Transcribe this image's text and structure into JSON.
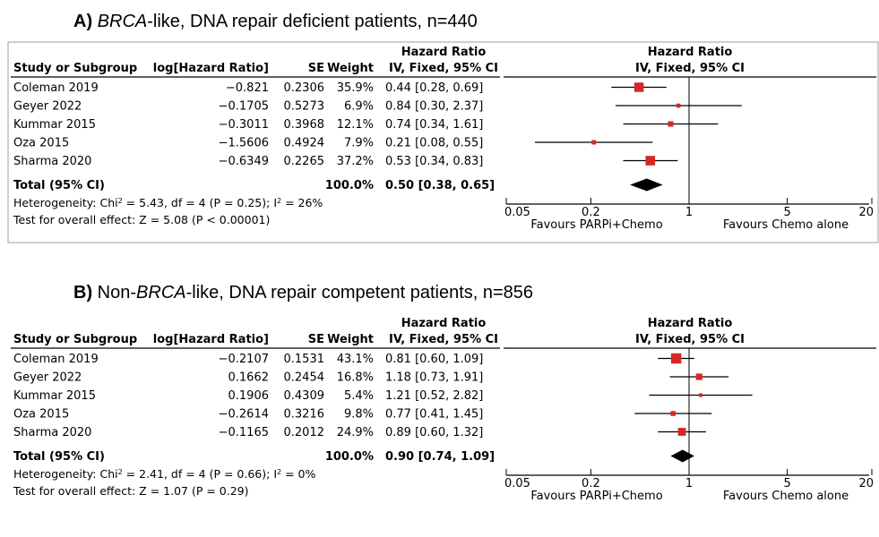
{
  "chart_data": [
    {
      "type": "forest",
      "title_prefix": "A)",
      "title_italic": "BRCA",
      "title_rest": "-like, DNA repair deficient patients,",
      "title_n": "n=440",
      "headers": {
        "study": "Study or Subgroup",
        "loghr": "log[Hazard Ratio]",
        "se": "SE",
        "weight": "Weight",
        "hr_line1": "Hazard Ratio",
        "hr_line2": "IV, Fixed, 95% CI",
        "plot_line1": "Hazard Ratio",
        "plot_line2": "IV, Fixed, 95% CI"
      },
      "studies": [
        {
          "name": "Coleman 2019",
          "loghr": "−0.821",
          "se": "0.2306",
          "weight": "35.9%",
          "ci_text": "0.44 [0.28, 0.69]",
          "hr": 0.44,
          "lo": 0.28,
          "hi": 0.69,
          "w": 35.9
        },
        {
          "name": "Geyer 2022",
          "loghr": "−0.1705",
          "se": "0.5273",
          "weight": "6.9%",
          "ci_text": "0.84 [0.30, 2.37]",
          "hr": 0.84,
          "lo": 0.3,
          "hi": 2.37,
          "w": 6.9
        },
        {
          "name": "Kummar 2015",
          "loghr": "−0.3011",
          "se": "0.3968",
          "weight": "12.1%",
          "ci_text": "0.74 [0.34, 1.61]",
          "hr": 0.74,
          "lo": 0.34,
          "hi": 1.61,
          "w": 12.1
        },
        {
          "name": "Oza 2015",
          "loghr": "−1.5606",
          "se": "0.4924",
          "weight": "7.9%",
          "ci_text": "0.21 [0.08, 0.55]",
          "hr": 0.21,
          "lo": 0.08,
          "hi": 0.55,
          "w": 7.9
        },
        {
          "name": "Sharma 2020",
          "loghr": "−0.6349",
          "se": "0.2265",
          "weight": "37.2%",
          "ci_text": "0.53 [0.34, 0.83]",
          "hr": 0.53,
          "lo": 0.34,
          "hi": 0.83,
          "w": 37.2
        }
      ],
      "total": {
        "label": "Total (95% CI)",
        "weight": "100.0%",
        "ci_text": "0.50 [0.38, 0.65]",
        "hr": 0.5,
        "lo": 0.38,
        "hi": 0.65
      },
      "heterogeneity": {
        "prefix": "Heterogeneity: Chi",
        "sup1": "2",
        "mid": " = 5.43, df = 4 (P = 0.25); I",
        "sup2": "2",
        "end": " = 26%"
      },
      "overall": "Test for overall effect: Z = 5.08 (P < 0.00001)",
      "axis": {
        "scale": "log",
        "ticks": [
          0.05,
          0.2,
          1,
          5,
          20
        ],
        "tick_labels": [
          "0.05",
          "0.2",
          "1",
          "5",
          "20"
        ],
        "range": [
          0.05,
          20
        ],
        "favours_left": "Favours PARPi+Chemo",
        "favours_right": "Favours Chemo alone"
      }
    },
    {
      "type": "forest",
      "title_prefix": "B)",
      "title_italic_before": "Non-",
      "title_italic": "BRCA",
      "title_rest": "-like, DNA repair competent patients,",
      "title_n": "n=856",
      "headers": {
        "study": "Study or Subgroup",
        "loghr": "log[Hazard Ratio]",
        "se": "SE",
        "weight": "Weight",
        "hr_line1": "Hazard Ratio",
        "hr_line2": "IV, Fixed, 95% CI",
        "plot_line1": "Hazard Ratio",
        "plot_line2": "IV, Fixed, 95% CI"
      },
      "studies": [
        {
          "name": "Coleman 2019",
          "loghr": "−0.2107",
          "se": "0.1531",
          "weight": "43.1%",
          "ci_text": "0.81 [0.60, 1.09]",
          "hr": 0.81,
          "lo": 0.6,
          "hi": 1.09,
          "w": 43.1
        },
        {
          "name": "Geyer 2022",
          "loghr": "0.1662",
          "se": "0.2454",
          "weight": "16.8%",
          "ci_text": "1.18 [0.73, 1.91]",
          "hr": 1.18,
          "lo": 0.73,
          "hi": 1.91,
          "w": 16.8
        },
        {
          "name": "Kummar 2015",
          "loghr": "0.1906",
          "se": "0.4309",
          "weight": "5.4%",
          "ci_text": "1.21 [0.52, 2.82]",
          "hr": 1.21,
          "lo": 0.52,
          "hi": 2.82,
          "w": 5.4
        },
        {
          "name": "Oza 2015",
          "loghr": "−0.2614",
          "se": "0.3216",
          "weight": "9.8%",
          "ci_text": "0.77 [0.41, 1.45]",
          "hr": 0.77,
          "lo": 0.41,
          "hi": 1.45,
          "w": 9.8
        },
        {
          "name": "Sharma 2020",
          "loghr": "−0.1165",
          "se": "0.2012",
          "weight": "24.9%",
          "ci_text": "0.89 [0.60, 1.32]",
          "hr": 0.89,
          "lo": 0.6,
          "hi": 1.32,
          "w": 24.9
        }
      ],
      "total": {
        "label": "Total (95% CI)",
        "weight": "100.0%",
        "ci_text": "0.90 [0.74, 1.09]",
        "hr": 0.9,
        "lo": 0.74,
        "hi": 1.09
      },
      "heterogeneity": {
        "prefix": "Heterogeneity: Chi",
        "sup1": "2",
        "mid": " = 2.41, df = 4 (P = 0.66); I",
        "sup2": "2",
        "end": " = 0%"
      },
      "overall": "Test for overall effect: Z = 1.07 (P = 0.29)",
      "axis": {
        "scale": "log",
        "ticks": [
          0.05,
          0.2,
          1,
          5,
          20
        ],
        "tick_labels": [
          "0.05",
          "0.2",
          "1",
          "5",
          "20"
        ],
        "range": [
          0.05,
          20
        ],
        "favours_left": "Favours PARPi+Chemo",
        "favours_right": "Favours Chemo alone"
      }
    }
  ],
  "colors": {
    "square": "#d62728",
    "line": "#000000",
    "diamond": "#000000",
    "separator": "#888888"
  },
  "icons": {
    "study_marker": "square-marker-icon",
    "total_marker": "diamond-marker-icon"
  }
}
